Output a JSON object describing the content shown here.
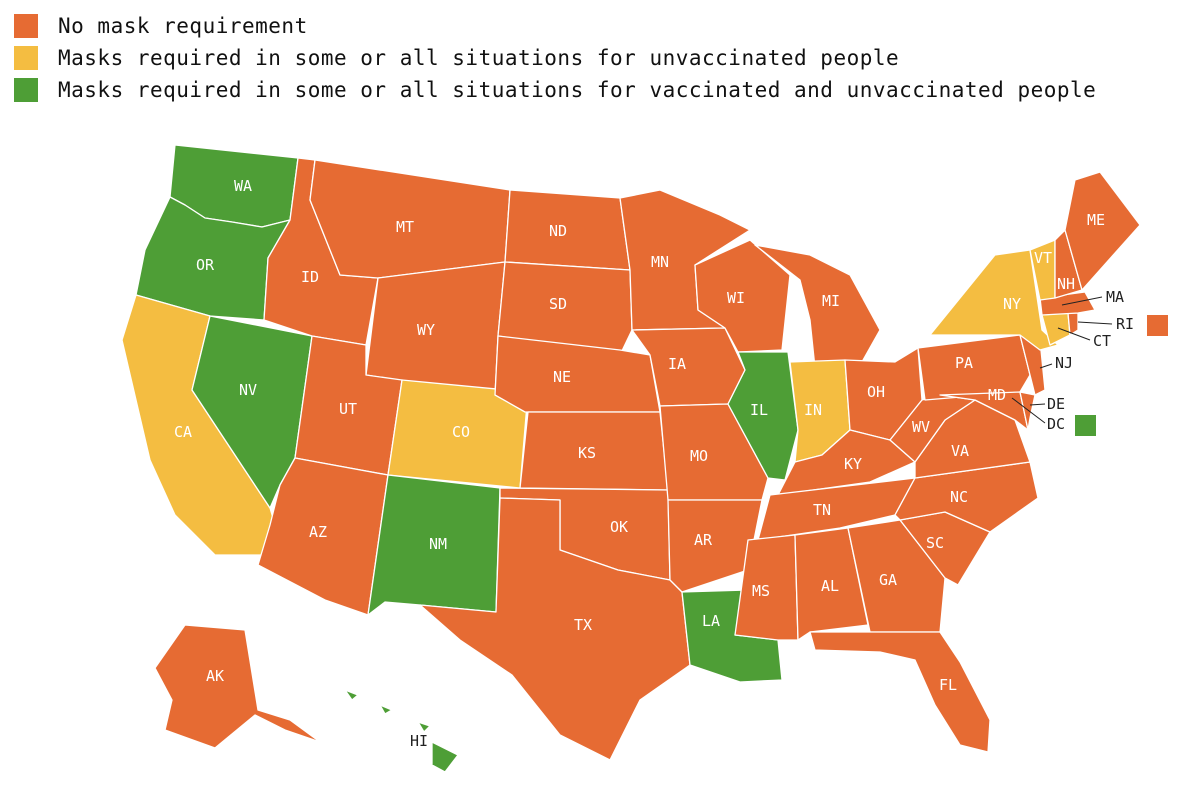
{
  "colors": {
    "none": "#e66b33",
    "unvax": "#f4bd41",
    "all": "#4e9e36"
  },
  "legend": [
    {
      "key": "none",
      "label": "No mask requirement"
    },
    {
      "key": "unvax",
      "label": "Masks required in some or all situations for unvaccinated people"
    },
    {
      "key": "all",
      "label": "Masks required in some or all situations for vaccinated and unvaccinated people"
    }
  ],
  "states": {
    "WA": "all",
    "OR": "all",
    "CA": "unvax",
    "NV": "all",
    "ID": "none",
    "MT": "none",
    "WY": "none",
    "UT": "none",
    "AZ": "none",
    "CO": "unvax",
    "NM": "all",
    "ND": "none",
    "SD": "none",
    "NE": "none",
    "KS": "none",
    "OK": "none",
    "TX": "none",
    "MN": "none",
    "IA": "none",
    "MO": "none",
    "AR": "none",
    "LA": "all",
    "WI": "none",
    "IL": "all",
    "MI": "none",
    "IN": "unvax",
    "OH": "none",
    "KY": "none",
    "TN": "none",
    "MS": "none",
    "AL": "none",
    "GA": "none",
    "FL": "none",
    "SC": "none",
    "NC": "none",
    "VA": "none",
    "WV": "none",
    "PA": "none",
    "NY": "unvax",
    "VT": "unvax",
    "NH": "none",
    "ME": "none",
    "MA": "none",
    "CT": "unvax",
    "RI": "none",
    "NJ": "none",
    "DE": "none",
    "MD": "none",
    "DC": "all",
    "AK": "none",
    "HI": "all"
  },
  "labels": {
    "WA": "WA",
    "OR": "OR",
    "CA": "CA",
    "NV": "NV",
    "ID": "ID",
    "MT": "MT",
    "WY": "WY",
    "UT": "UT",
    "AZ": "AZ",
    "CO": "CO",
    "NM": "NM",
    "ND": "ND",
    "SD": "SD",
    "NE": "NE",
    "KS": "KS",
    "OK": "OK",
    "TX": "TX",
    "MN": "MN",
    "IA": "IA",
    "MO": "MO",
    "AR": "AR",
    "LA": "LA",
    "WI": "WI",
    "IL": "IL",
    "MI": "MI",
    "IN": "IN",
    "OH": "OH",
    "KY": "KY",
    "TN": "TN",
    "MS": "MS",
    "AL": "AL",
    "GA": "GA",
    "FL": "FL",
    "SC": "SC",
    "NC": "NC",
    "VA": "VA",
    "WV": "WV",
    "PA": "PA",
    "NY": "NY",
    "VT": "VT",
    "NH": "NH",
    "ME": "ME",
    "MA": "MA",
    "CT": "CT",
    "RI": "RI",
    "NJ": "NJ",
    "DE": "DE",
    "MD": "MD",
    "DC": "DC",
    "AK": "AK",
    "HI": "HI"
  }
}
